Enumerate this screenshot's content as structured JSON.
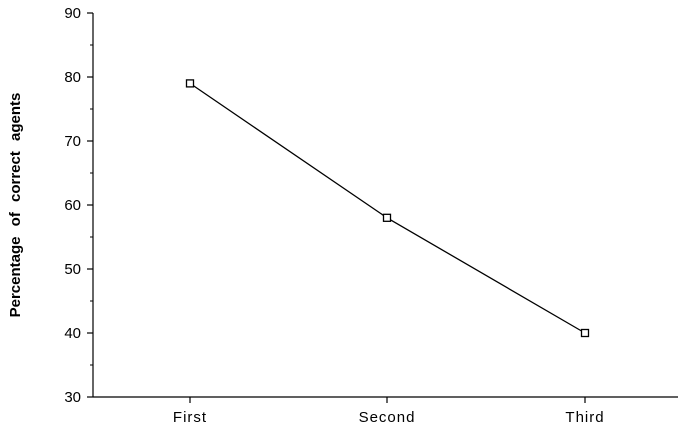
{
  "chart_data": {
    "type": "line",
    "categories": [
      "First",
      "Second",
      "Third"
    ],
    "series": [
      {
        "values": [
          79,
          58,
          40
        ]
      }
    ],
    "title": "",
    "xlabel": "",
    "ylabel": "Percentage of correct agents",
    "ylim": [
      30,
      90
    ],
    "yticks": [
      30,
      40,
      50,
      60,
      70,
      80,
      90
    ],
    "grid": false,
    "legend": "none",
    "colors": {
      "line": "#000000",
      "marker_stroke": "#000000",
      "marker_fill": "#ffffff"
    }
  }
}
